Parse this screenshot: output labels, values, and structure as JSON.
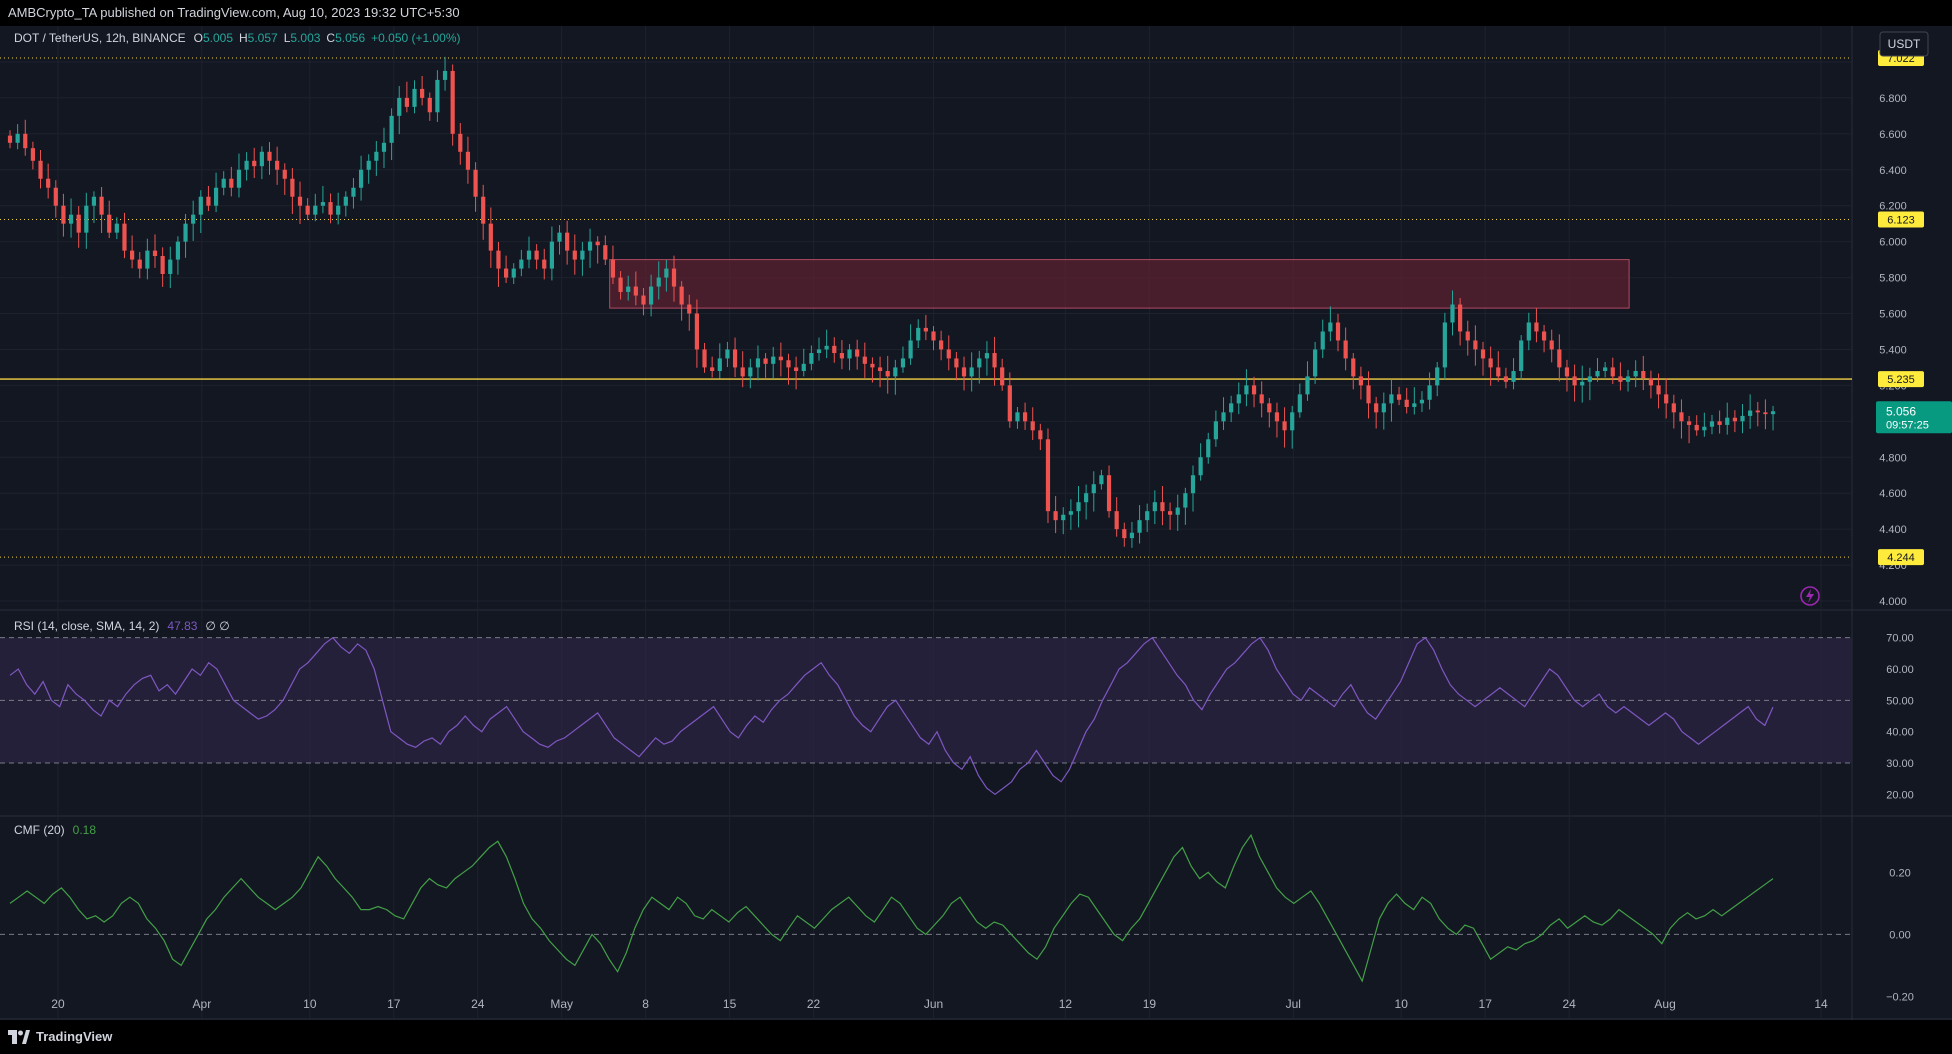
{
  "header": {
    "published": "AMBCrypto_TA published on TradingView.com, Aug 10, 2023 19:32 UTC+5:30"
  },
  "legend": {
    "symbol": "DOT / TetherUS, 12h, BINANCE",
    "o_label": "O",
    "o": "5.005",
    "h_label": "H",
    "h": "5.057",
    "l_label": "L",
    "l": "5.003",
    "c_label": "C",
    "c": "5.056",
    "change": "+0.050 (+1.00%)"
  },
  "currency": "USDT",
  "footer": {
    "brand": "TradingView"
  },
  "colors": {
    "bg": "#131722",
    "up": "#26a69a",
    "down": "#ef5350",
    "grid": "#1e222d",
    "axis_text": "#b2b5be",
    "level_badge": "#ffeb3b",
    "rsi_line": "#7e57c2",
    "rsi_band": "#2a2340",
    "cmf_line": "#43a047",
    "support_line": "#f5d142",
    "zone": "#5c2230"
  },
  "chart_data": [
    {
      "type": "candlestick",
      "symbol": "DOT / TetherUS",
      "interval": "12h",
      "ylim": [
        3.95,
        7.2
      ],
      "y_ticks": [
        "4.000",
        "4.200",
        "4.400",
        "4.600",
        "4.800",
        "5.000",
        "5.200",
        "5.400",
        "5.600",
        "5.800",
        "6.000",
        "6.200",
        "6.400",
        "6.600",
        "6.800",
        "7.000"
      ],
      "x_ticks": [
        "20",
        "Apr",
        "10",
        "17",
        "24",
        "May",
        "8",
        "15",
        "22",
        "Jun",
        "12",
        "19",
        "Jul",
        "10",
        "17",
        "24",
        "Aug",
        "14"
      ],
      "x_start": "2023-03-16",
      "x_end": "2023-08-16",
      "levels": [
        {
          "value": 7.022,
          "label": "7.022",
          "style": "dotted"
        },
        {
          "value": 6.123,
          "label": "6.123",
          "style": "dotted"
        },
        {
          "value": 5.235,
          "label": "5.235",
          "style": "solid"
        },
        {
          "value": 4.244,
          "label": "4.244",
          "style": "dotted"
        }
      ],
      "zone": {
        "x0": "2023-05-05",
        "x1": "2023-07-29",
        "y0": 5.63,
        "y1": 5.9
      },
      "last_price": "5.056",
      "countdown": "09:57:25",
      "closes": [
        6.55,
        6.6,
        6.52,
        6.45,
        6.35,
        6.3,
        6.2,
        6.1,
        6.15,
        6.05,
        6.2,
        6.25,
        6.15,
        6.05,
        6.1,
        5.95,
        5.9,
        5.85,
        5.95,
        5.92,
        5.82,
        5.9,
        6.0,
        6.1,
        6.15,
        6.25,
        6.2,
        6.3,
        6.35,
        6.3,
        6.4,
        6.45,
        6.42,
        6.5,
        6.45,
        6.4,
        6.35,
        6.25,
        6.2,
        6.15,
        6.2,
        6.22,
        6.15,
        6.2,
        6.25,
        6.3,
        6.4,
        6.45,
        6.5,
        6.55,
        6.7,
        6.8,
        6.75,
        6.85,
        6.8,
        6.72,
        6.9,
        6.95,
        6.6,
        6.5,
        6.4,
        6.25,
        6.1,
        5.95,
        5.85,
        5.8,
        5.85,
        5.9,
        5.95,
        5.9,
        5.85,
        6.0,
        6.05,
        5.95,
        5.9,
        5.95,
        6.0,
        5.98,
        5.9,
        5.8,
        5.72,
        5.75,
        5.7,
        5.65,
        5.75,
        5.8,
        5.85,
        5.75,
        5.65,
        5.6,
        5.4,
        5.3,
        5.28,
        5.35,
        5.4,
        5.3,
        5.25,
        5.3,
        5.35,
        5.32,
        5.36,
        5.34,
        5.3,
        5.28,
        5.32,
        5.38,
        5.4,
        5.42,
        5.38,
        5.35,
        5.4,
        5.36,
        5.32,
        5.3,
        5.28,
        5.25,
        5.3,
        5.35,
        5.45,
        5.52,
        5.5,
        5.45,
        5.4,
        5.35,
        5.3,
        5.25,
        5.3,
        5.35,
        5.38,
        5.3,
        5.2,
        5.0,
        5.05,
        5.0,
        4.95,
        4.9,
        4.5,
        4.45,
        4.48,
        4.5,
        4.55,
        4.6,
        4.65,
        4.7,
        4.5,
        4.4,
        4.35,
        4.38,
        4.45,
        4.5,
        4.55,
        4.5,
        4.48,
        4.52,
        4.6,
        4.7,
        4.8,
        4.9,
        5.0,
        5.05,
        5.1,
        5.15,
        5.2,
        5.15,
        5.1,
        5.05,
        5.0,
        4.95,
        5.05,
        5.15,
        5.25,
        5.4,
        5.5,
        5.55,
        5.45,
        5.35,
        5.25,
        5.2,
        5.1,
        5.05,
        5.1,
        5.15,
        5.12,
        5.08,
        5.1,
        5.12,
        5.2,
        5.3,
        5.55,
        5.65,
        5.5,
        5.45,
        5.4,
        5.35,
        5.3,
        5.25,
        5.22,
        5.28,
        5.45,
        5.55,
        5.5,
        5.45,
        5.4,
        5.3,
        5.25,
        5.2,
        5.22,
        5.25,
        5.28,
        5.3,
        5.25,
        5.22,
        5.25,
        5.28,
        5.24,
        5.2,
        5.15,
        5.1,
        5.05,
        5.0,
        4.98,
        4.95,
        4.97,
        5.0,
        4.98,
        5.02,
        5.0,
        5.03,
        5.06,
        5.05,
        5.04,
        5.056
      ]
    },
    {
      "type": "line",
      "name": "RSI (14, close, SMA, 14, 2)",
      "legend_value": "47.83",
      "legend_extra": "∅ ∅",
      "ylim": [
        15,
        75
      ],
      "y_ticks": [
        "20.00",
        "30.00",
        "40.00",
        "50.00",
        "60.00",
        "70.00"
      ],
      "band": [
        30,
        70
      ],
      "midline": 50,
      "values": [
        58,
        60,
        55,
        52,
        56,
        50,
        48,
        55,
        52,
        50,
        47,
        45,
        50,
        48,
        52,
        55,
        57,
        58,
        53,
        55,
        52,
        56,
        60,
        58,
        62,
        60,
        55,
        50,
        48,
        46,
        44,
        45,
        47,
        50,
        55,
        60,
        62,
        65,
        68,
        70,
        67,
        65,
        68,
        66,
        60,
        50,
        40,
        38,
        36,
        35,
        37,
        38,
        36,
        40,
        42,
        45,
        42,
        40,
        44,
        46,
        48,
        44,
        40,
        38,
        36,
        35,
        37,
        38,
        40,
        42,
        44,
        46,
        42,
        38,
        36,
        34,
        32,
        35,
        38,
        36,
        37,
        40,
        42,
        44,
        46,
        48,
        44,
        40,
        38,
        42,
        45,
        43,
        47,
        50,
        52,
        55,
        58,
        60,
        62,
        58,
        55,
        50,
        45,
        42,
        40,
        44,
        48,
        50,
        46,
        42,
        38,
        36,
        40,
        34,
        30,
        28,
        32,
        26,
        22,
        20,
        22,
        24,
        28,
        30,
        34,
        30,
        26,
        24,
        28,
        34,
        40,
        44,
        50,
        55,
        60,
        62,
        65,
        68,
        70,
        66,
        62,
        58,
        55,
        50,
        47,
        52,
        56,
        60,
        62,
        65,
        68,
        70,
        66,
        60,
        56,
        52,
        50,
        54,
        52,
        50,
        48,
        52,
        55,
        50,
        46,
        44,
        48,
        52,
        56,
        62,
        68,
        70,
        66,
        60,
        55,
        52,
        50,
        48,
        50,
        52,
        54,
        52,
        50,
        48,
        52,
        56,
        60,
        58,
        54,
        50,
        48,
        50,
        52,
        48,
        46,
        48,
        46,
        44,
        42,
        44,
        46,
        44,
        40,
        38,
        36,
        38,
        40,
        42,
        44,
        46,
        48,
        44,
        42,
        47.83
      ]
    },
    {
      "type": "line",
      "name": "CMF (20)",
      "legend_value": "0.18",
      "ylim": [
        -0.25,
        0.33
      ],
      "y_ticks": [
        "−0.20",
        "0.00",
        "0.20"
      ],
      "midline": 0,
      "values": [
        0.1,
        0.12,
        0.14,
        0.12,
        0.1,
        0.13,
        0.15,
        0.12,
        0.08,
        0.05,
        0.06,
        0.04,
        0.06,
        0.1,
        0.12,
        0.1,
        0.05,
        0.02,
        -0.02,
        -0.08,
        -0.1,
        -0.05,
        0.0,
        0.05,
        0.08,
        0.12,
        0.15,
        0.18,
        0.15,
        0.12,
        0.1,
        0.08,
        0.1,
        0.12,
        0.15,
        0.2,
        0.25,
        0.22,
        0.18,
        0.15,
        0.12,
        0.08,
        0.08,
        0.09,
        0.08,
        0.06,
        0.05,
        0.1,
        0.15,
        0.18,
        0.16,
        0.15,
        0.18,
        0.2,
        0.22,
        0.25,
        0.28,
        0.3,
        0.25,
        0.18,
        0.1,
        0.05,
        0.02,
        -0.02,
        -0.05,
        -0.08,
        -0.1,
        -0.05,
        0.0,
        -0.03,
        -0.08,
        -0.12,
        -0.06,
        0.02,
        0.08,
        0.12,
        0.1,
        0.08,
        0.12,
        0.1,
        0.06,
        0.05,
        0.08,
        0.06,
        0.04,
        0.07,
        0.09,
        0.06,
        0.03,
        0.0,
        -0.02,
        0.02,
        0.06,
        0.04,
        0.02,
        0.05,
        0.08,
        0.1,
        0.12,
        0.09,
        0.06,
        0.04,
        0.08,
        0.12,
        0.1,
        0.06,
        0.02,
        0.0,
        0.03,
        0.06,
        0.1,
        0.12,
        0.08,
        0.04,
        0.02,
        0.04,
        0.03,
        0.0,
        -0.03,
        -0.06,
        -0.08,
        -0.04,
        0.02,
        0.06,
        0.1,
        0.13,
        0.12,
        0.08,
        0.04,
        0.0,
        -0.02,
        0.02,
        0.05,
        0.1,
        0.15,
        0.2,
        0.25,
        0.28,
        0.22,
        0.18,
        0.2,
        0.17,
        0.15,
        0.22,
        0.28,
        0.32,
        0.25,
        0.2,
        0.15,
        0.12,
        0.1,
        0.12,
        0.14,
        0.1,
        0.05,
        0.0,
        -0.05,
        -0.1,
        -0.15,
        -0.05,
        0.05,
        0.1,
        0.13,
        0.1,
        0.08,
        0.12,
        0.1,
        0.05,
        0.02,
        0.0,
        0.03,
        0.02,
        -0.03,
        -0.08,
        -0.06,
        -0.04,
        -0.05,
        -0.03,
        -0.02,
        0.0,
        0.03,
        0.05,
        0.02,
        0.04,
        0.06,
        0.04,
        0.03,
        0.05,
        0.08,
        0.06,
        0.04,
        0.02,
        0.0,
        -0.03,
        0.02,
        0.05,
        0.07,
        0.05,
        0.06,
        0.08,
        0.06,
        0.08,
        0.1,
        0.12,
        0.14,
        0.16,
        0.18
      ]
    }
  ]
}
